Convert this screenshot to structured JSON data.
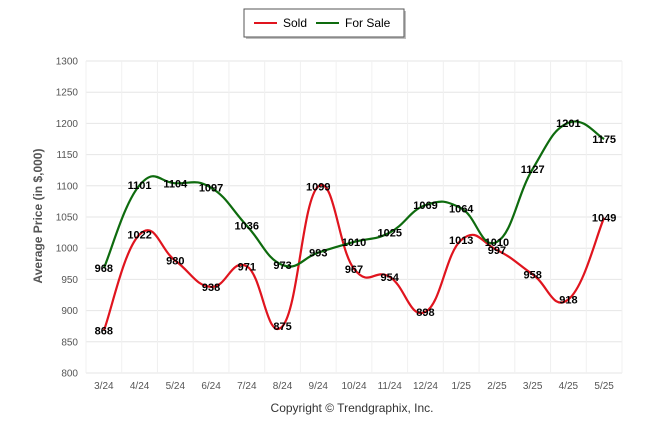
{
  "chart_data": {
    "type": "line",
    "categories": [
      "3/24",
      "4/24",
      "5/24",
      "6/24",
      "7/24",
      "8/24",
      "9/24",
      "10/24",
      "11/24",
      "12/24",
      "1/25",
      "2/25",
      "3/25",
      "4/25",
      "5/25"
    ],
    "series": [
      {
        "name": "Sold",
        "color": "#e0141e",
        "values": [
          868,
          1022,
          980,
          938,
          971,
          875,
          1099,
          967,
          954,
          898,
          1013,
          997,
          958,
          918,
          1049
        ]
      },
      {
        "name": "For Sale",
        "color": "#0e6b0e",
        "values": [
          968,
          1101,
          1104,
          1097,
          1036,
          973,
          993,
          1010,
          1025,
          1069,
          1064,
          1010,
          1127,
          1201,
          1175
        ]
      }
    ],
    "ylabel": "Average Price (in $,000)",
    "ylim": [
      800,
      1300
    ],
    "yticks": [
      800,
      850,
      900,
      950,
      1000,
      1050,
      1100,
      1150,
      1200,
      1250,
      1300
    ],
    "grid": true,
    "legend": "top-center"
  },
  "footer": {
    "copyright": "Copyright © Trendgraphix, Inc."
  }
}
